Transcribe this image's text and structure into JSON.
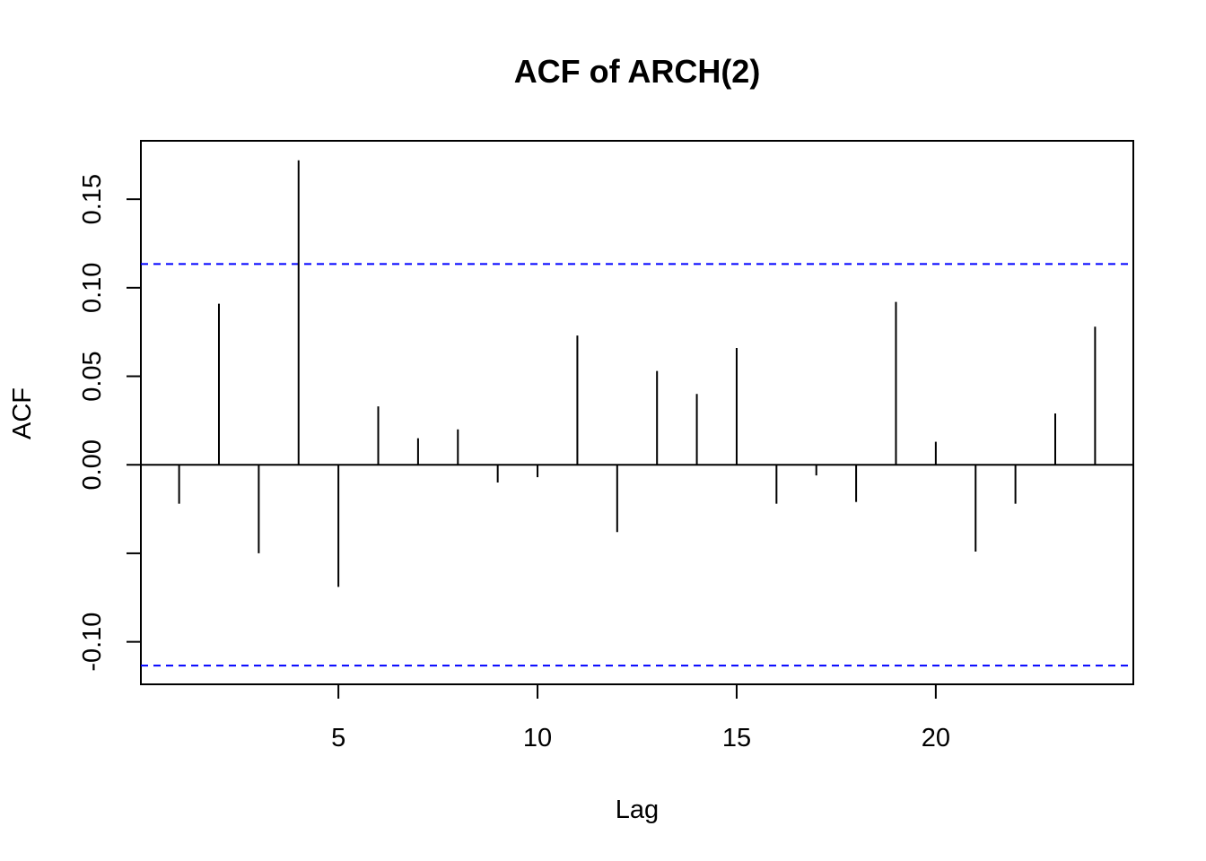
{
  "chart_data": {
    "type": "bar",
    "title": "ACF of ARCH(2)",
    "xlabel": "Lag",
    "ylabel": "ACF",
    "xlim": [
      0.04,
      24.96
    ],
    "ylim": [
      -0.124,
      0.183
    ],
    "x_ticks": [
      5,
      10,
      15,
      20
    ],
    "y_ticks": [
      -0.1,
      -0.05,
      0.0,
      0.05,
      0.1,
      0.15
    ],
    "y_tick_labels": [
      "-0.10",
      "",
      "0.00",
      "0.05",
      "0.10",
      "0.15"
    ],
    "confidence_bound": 0.1134,
    "confidence_color": "#0000ff",
    "bar_color": "#000000",
    "lags": [
      1,
      2,
      3,
      4,
      5,
      6,
      7,
      8,
      9,
      10,
      11,
      12,
      13,
      14,
      15,
      16,
      17,
      18,
      19,
      20,
      21,
      22,
      23,
      24
    ],
    "values": [
      -0.022,
      0.091,
      -0.05,
      0.172,
      -0.069,
      0.033,
      0.015,
      0.02,
      -0.01,
      -0.007,
      0.073,
      -0.038,
      0.053,
      0.04,
      0.066,
      -0.022,
      -0.006,
      -0.021,
      0.092,
      0.013,
      -0.049,
      -0.022,
      0.029,
      0.078
    ]
  }
}
